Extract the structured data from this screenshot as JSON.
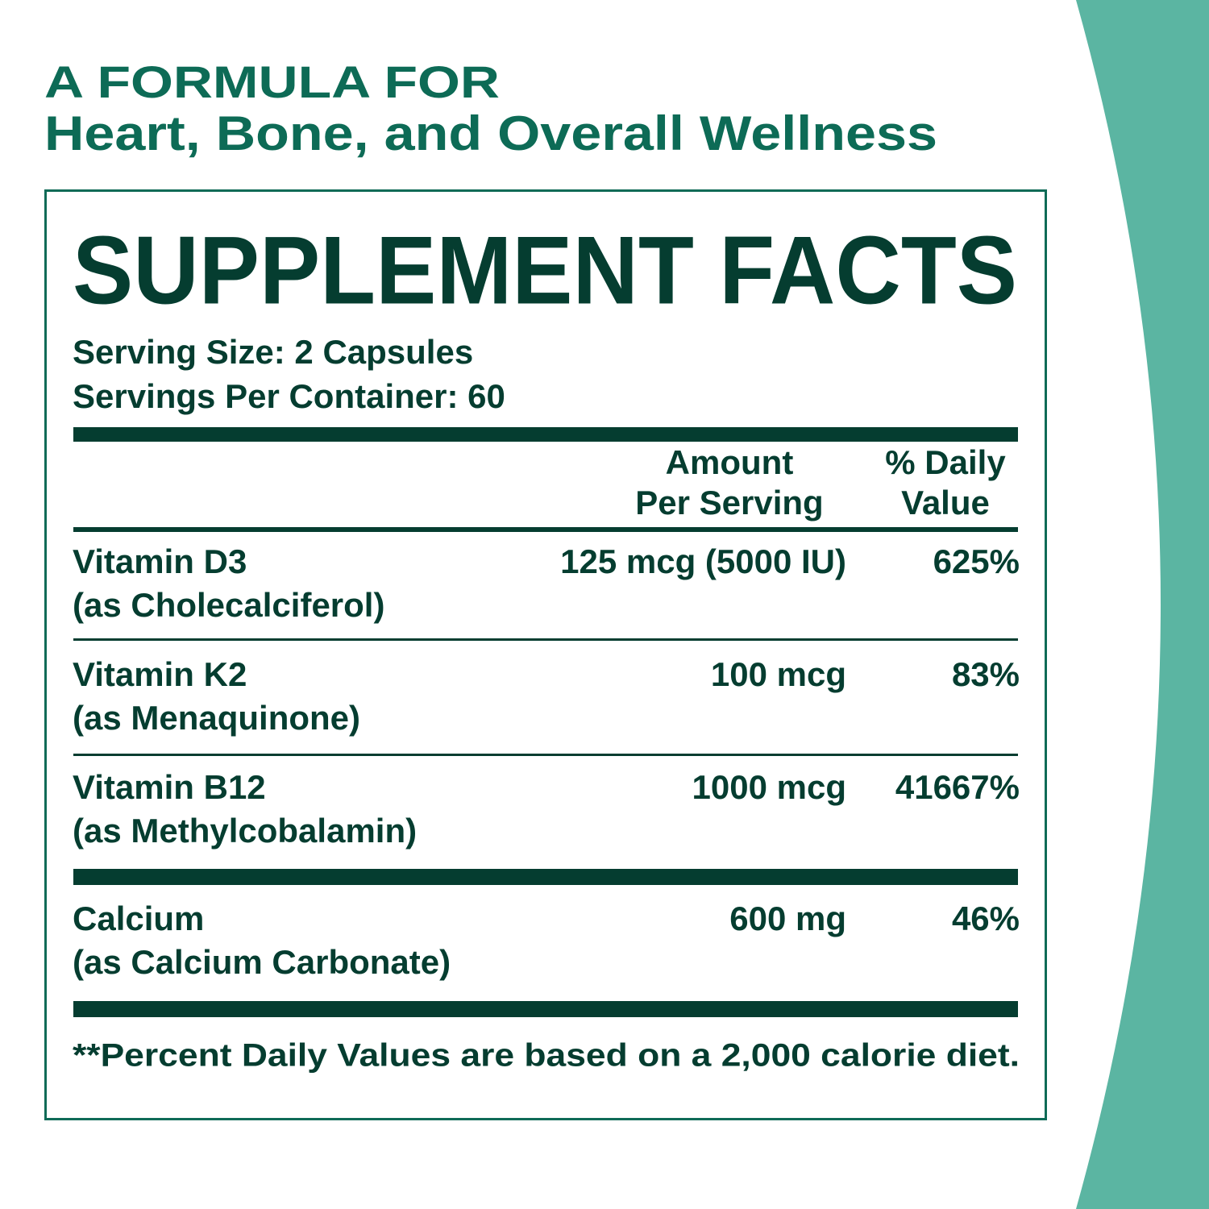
{
  "header": {
    "line1": "A FORMULA FOR",
    "line2": "Heart, Bone, and Overall Wellness"
  },
  "facts": {
    "title": "SUPPLEMENT FACTS",
    "serving_size": "Serving Size: 2 Capsules",
    "servings_per_container": "Servings Per Container: 60",
    "amount_header": [
      "Amount",
      "Per Serving"
    ],
    "dv_header": [
      "% Daily",
      "Value"
    ],
    "rows": [
      {
        "name": "Vitamin D3",
        "source": "(as Cholecalciferol)",
        "amount": "125 mcg (5000 IU)",
        "dv": "625%"
      },
      {
        "name": "Vitamin K2",
        "source": "(as Menaquinone)",
        "amount": "100 mcg",
        "dv": "83%"
      },
      {
        "name": "Vitamin B12",
        "source": "(as Methylcobalamin)",
        "amount": "1000 mcg",
        "dv": "41667%"
      },
      {
        "name": "Calcium",
        "source": "(as Calcium Carbonate)",
        "amount": "600 mg",
        "dv": "46%"
      }
    ],
    "footnote": "**Percent Daily Values are based on a 2,000 calorie diet."
  }
}
